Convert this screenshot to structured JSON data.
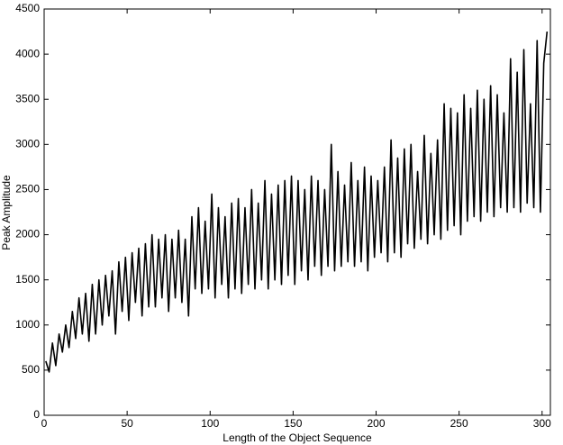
{
  "chart_data": {
    "type": "line",
    "xlabel": "Length of the Object Sequence",
    "ylabel": "Peak Amplitude",
    "xlim": [
      0,
      305
    ],
    "ylim": [
      0,
      4500
    ],
    "xticks": [
      0,
      50,
      100,
      150,
      200,
      250,
      300
    ],
    "yticks": [
      0,
      500,
      1000,
      1500,
      2000,
      2500,
      3000,
      3500,
      4000,
      4500
    ],
    "series": [
      {
        "color": "#000000",
        "x": [
          1,
          3,
          5,
          7,
          9,
          11,
          13,
          15,
          17,
          19,
          21,
          23,
          25,
          27,
          29,
          31,
          33,
          35,
          37,
          39,
          41,
          43,
          45,
          47,
          49,
          51,
          53,
          55,
          57,
          59,
          61,
          63,
          65,
          67,
          69,
          71,
          73,
          75,
          77,
          79,
          81,
          83,
          85,
          87,
          89,
          91,
          93,
          95,
          97,
          99,
          101,
          103,
          105,
          107,
          109,
          111,
          113,
          115,
          117,
          119,
          121,
          123,
          125,
          127,
          129,
          131,
          133,
          135,
          137,
          139,
          141,
          143,
          145,
          147,
          149,
          151,
          153,
          155,
          157,
          159,
          161,
          163,
          165,
          167,
          169,
          171,
          173,
          175,
          177,
          179,
          181,
          183,
          185,
          187,
          189,
          191,
          193,
          195,
          197,
          199,
          201,
          203,
          205,
          207,
          209,
          211,
          213,
          215,
          217,
          219,
          221,
          223,
          225,
          227,
          229,
          231,
          233,
          235,
          237,
          239,
          241,
          243,
          245,
          247,
          249,
          251,
          253,
          255,
          257,
          259,
          261,
          263,
          265,
          267,
          269,
          271,
          273,
          275,
          277,
          279,
          281,
          283,
          285,
          287,
          289,
          291,
          293,
          295,
          297,
          299,
          301,
          303
        ],
        "values": [
          600,
          480,
          800,
          550,
          900,
          700,
          1000,
          750,
          1150,
          850,
          1300,
          900,
          1350,
          820,
          1450,
          900,
          1500,
          1000,
          1550,
          1100,
          1600,
          900,
          1700,
          1150,
          1750,
          1050,
          1800,
          1250,
          1850,
          1100,
          1900,
          1200,
          2000,
          1200,
          1950,
          1300,
          2000,
          1150,
          1950,
          1300,
          2050,
          1250,
          1950,
          1100,
          2200,
          1400,
          2300,
          1350,
          2150,
          1400,
          2450,
          1300,
          2300,
          1450,
          2200,
          1300,
          2350,
          1400,
          2400,
          1350,
          2300,
          1450,
          2500,
          1400,
          2350,
          1500,
          2600,
          1400,
          2450,
          1500,
          2550,
          1450,
          2600,
          1550,
          2650,
          1450,
          2600,
          1600,
          2500,
          1500,
          2650,
          1650,
          2600,
          1550,
          2500,
          1650,
          3000,
          1600,
          2700,
          1650,
          2550,
          1700,
          2800,
          1650,
          2600,
          1700,
          2750,
          1600,
          2650,
          1750,
          2600,
          1800,
          2750,
          1700,
          3050,
          1800,
          2850,
          1750,
          2950,
          1900,
          3000,
          1850,
          2700,
          1950,
          3100,
          1900,
          2900,
          2000,
          3050,
          1950,
          3450,
          2050,
          3400,
          2100,
          3350,
          2000,
          3550,
          2150,
          3400,
          2200,
          3600,
          2150,
          3500,
          2250,
          3650,
          2200,
          3550,
          2300,
          3350,
          2250,
          3950,
          2300,
          3800,
          2250,
          4050,
          2350,
          3450,
          2300,
          4150,
          2250,
          3900,
          4250
        ]
      }
    ]
  }
}
